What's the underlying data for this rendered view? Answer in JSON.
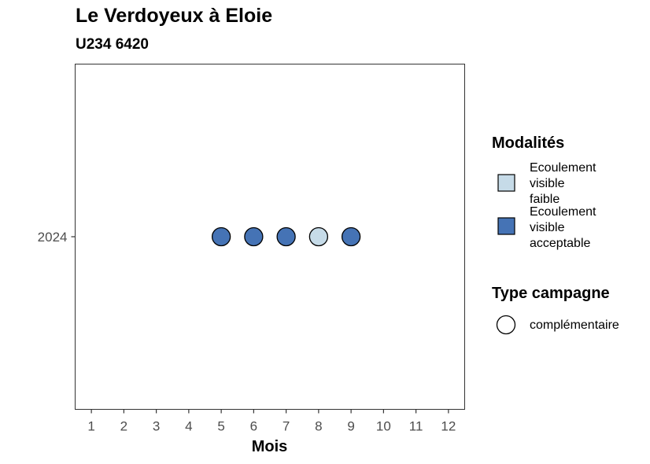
{
  "title": "Le Verdoyeux à Eloie",
  "subtitle": "U234 6420",
  "chart_data": {
    "type": "scatter",
    "title": "Le Verdoyeux à Eloie",
    "subtitle": "U234 6420",
    "xlabel": "Mois",
    "ylabel": "",
    "x_ticks": [
      "1",
      "2",
      "3",
      "4",
      "5",
      "6",
      "7",
      "8",
      "9",
      "10",
      "11",
      "12"
    ],
    "y_ticks": [
      "2024"
    ],
    "xlim": [
      0.5,
      12.5
    ],
    "grid": false,
    "legend_placement": "right",
    "points": [
      {
        "x": 5,
        "y": "2024",
        "modalite": "Ecoulement visible acceptable",
        "type_campagne": "complémentaire"
      },
      {
        "x": 6,
        "y": "2024",
        "modalite": "Ecoulement visible acceptable",
        "type_campagne": "complémentaire"
      },
      {
        "x": 7,
        "y": "2024",
        "modalite": "Ecoulement visible acceptable",
        "type_campagne": "complémentaire"
      },
      {
        "x": 8,
        "y": "2024",
        "modalite": "Ecoulement visible faible",
        "type_campagne": "complémentaire"
      },
      {
        "x": 9,
        "y": "2024",
        "modalite": "Ecoulement visible acceptable",
        "type_campagne": "complémentaire"
      }
    ]
  },
  "legend": {
    "modalites_title": "Modalités",
    "modalites": [
      {
        "label_lines": [
          "Ecoulement",
          "visible",
          "faible"
        ],
        "label": "Ecoulement visible faible",
        "color": "#c6dbe8"
      },
      {
        "label_lines": [
          "Ecoulement",
          "visible",
          "acceptable"
        ],
        "label": "Ecoulement visible acceptable",
        "color": "#4573b5"
      }
    ],
    "type_title": "Type campagne",
    "types": [
      {
        "label": "complémentaire"
      }
    ]
  }
}
